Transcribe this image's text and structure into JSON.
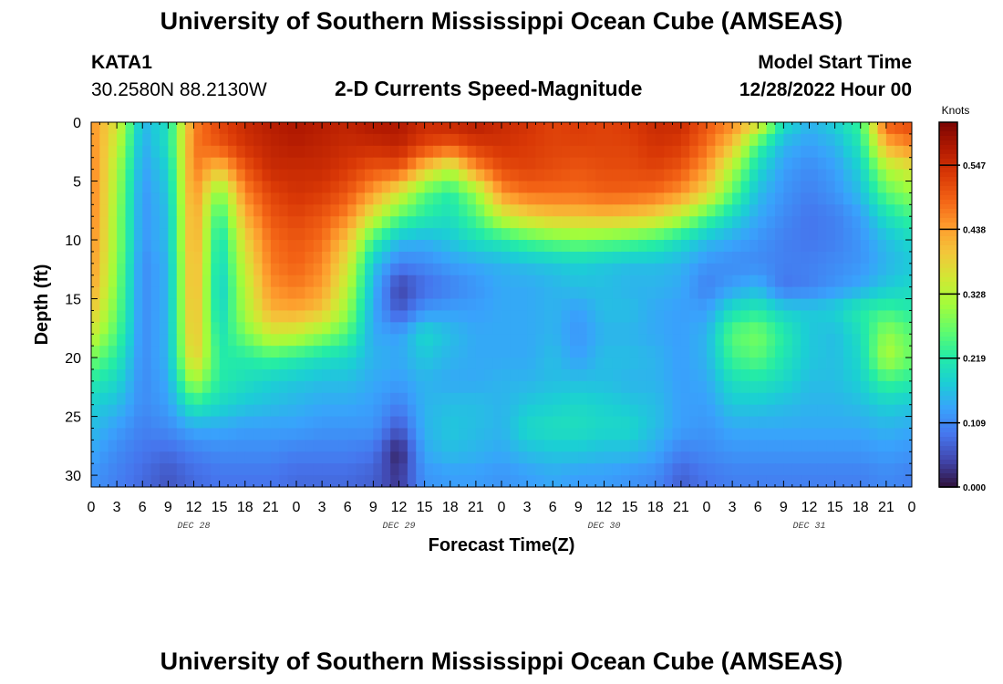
{
  "header": {
    "title": "University of Southern Mississippi Ocean Cube (AMSEAS)",
    "station": "KATA1",
    "coords": "30.2580N  88.2130W",
    "chart_title": "2-D Currents Speed-Magnitude",
    "model_start_label": "Model Start Time",
    "model_start_value": "12/28/2022 Hour 00"
  },
  "footer": {
    "title": "University of Southern Mississippi Ocean Cube (AMSEAS)"
  },
  "chart_data": {
    "type": "heatmap",
    "title": "2-D Currents Speed-Magnitude",
    "xlabel": "Forecast Time(Z)",
    "ylabel": "Depth (ft)",
    "x_tick_labels": [
      "0",
      "3",
      "6",
      "9",
      "12",
      "15",
      "18",
      "21",
      "0",
      "3",
      "6",
      "9",
      "12",
      "15",
      "18",
      "21",
      "0",
      "3",
      "6",
      "9",
      "12",
      "15",
      "18",
      "21",
      "0",
      "3",
      "6",
      "9",
      "12",
      "15",
      "18",
      "21",
      "0"
    ],
    "day_labels": [
      {
        "label": "DEC 28",
        "hour": 12
      },
      {
        "label": "DEC 29",
        "hour": 36
      },
      {
        "label": "DEC 30",
        "hour": 60
      },
      {
        "label": "DEC 31",
        "hour": 84
      }
    ],
    "xlim_hours": [
      0,
      96
    ],
    "ylim_ft": [
      0,
      31
    ],
    "y_ticks": [
      0,
      5,
      10,
      15,
      20,
      25,
      30
    ],
    "y_inverted": true,
    "colorbar": {
      "unit": "Knots",
      "min": 0.0,
      "max": 0.62,
      "tick_values": [
        0.547,
        0.438,
        0.328,
        0.219,
        0.109,
        0.0
      ],
      "tick_labels": [
        "0.547",
        "0.438",
        "0.328",
        "0.219",
        "0.109",
        "0.000"
      ],
      "colormap": [
        "#30123b",
        "#4145ab",
        "#4675ed",
        "#39a2fc",
        "#1bcfd4",
        "#24eca6",
        "#61fc6c",
        "#a4fc3b",
        "#d1e834",
        "#f3c63a",
        "#fe9b2d",
        "#f36315",
        "#d93806",
        "#b11901",
        "#7a0402"
      ]
    },
    "depth_levels_ft": [
      0,
      2,
      4,
      6,
      8,
      10,
      12,
      14,
      16,
      18,
      20,
      22,
      24,
      26,
      28,
      30
    ],
    "time_hours": [
      0,
      3,
      6,
      9,
      12,
      15,
      18,
      21,
      24,
      27,
      30,
      33,
      36,
      39,
      42,
      45,
      48,
      51,
      54,
      57,
      60,
      63,
      66,
      69,
      72,
      75,
      78,
      81,
      84,
      87,
      90,
      93,
      96
    ],
    "speed_knots": [
      [
        0.45,
        0.36,
        0.15,
        0.2,
        0.46,
        0.52,
        0.55,
        0.57,
        0.58,
        0.57,
        0.56,
        0.58,
        0.58,
        0.55,
        0.56,
        0.57,
        0.55,
        0.54,
        0.52,
        0.53,
        0.52,
        0.53,
        0.55,
        0.55,
        0.5,
        0.46,
        0.38,
        0.2,
        0.15,
        0.18,
        0.24,
        0.5,
        0.52
      ],
      [
        0.46,
        0.34,
        0.14,
        0.2,
        0.47,
        0.5,
        0.54,
        0.56,
        0.57,
        0.56,
        0.55,
        0.55,
        0.56,
        0.52,
        0.5,
        0.53,
        0.54,
        0.53,
        0.52,
        0.52,
        0.52,
        0.52,
        0.54,
        0.53,
        0.48,
        0.4,
        0.24,
        0.15,
        0.13,
        0.15,
        0.21,
        0.42,
        0.46
      ],
      [
        0.47,
        0.32,
        0.13,
        0.18,
        0.47,
        0.4,
        0.5,
        0.55,
        0.55,
        0.55,
        0.53,
        0.5,
        0.5,
        0.4,
        0.33,
        0.45,
        0.51,
        0.52,
        0.51,
        0.5,
        0.51,
        0.51,
        0.52,
        0.5,
        0.44,
        0.32,
        0.19,
        0.13,
        0.11,
        0.13,
        0.18,
        0.32,
        0.36
      ],
      [
        0.47,
        0.31,
        0.12,
        0.17,
        0.46,
        0.28,
        0.46,
        0.52,
        0.54,
        0.53,
        0.5,
        0.44,
        0.36,
        0.26,
        0.22,
        0.3,
        0.45,
        0.48,
        0.48,
        0.48,
        0.49,
        0.49,
        0.48,
        0.45,
        0.38,
        0.26,
        0.16,
        0.12,
        0.1,
        0.12,
        0.16,
        0.26,
        0.3
      ],
      [
        0.47,
        0.3,
        0.12,
        0.16,
        0.45,
        0.22,
        0.42,
        0.5,
        0.52,
        0.5,
        0.46,
        0.35,
        0.26,
        0.22,
        0.2,
        0.25,
        0.34,
        0.38,
        0.4,
        0.4,
        0.41,
        0.4,
        0.38,
        0.33,
        0.25,
        0.19,
        0.14,
        0.11,
        0.09,
        0.1,
        0.13,
        0.2,
        0.24
      ],
      [
        0.46,
        0.3,
        0.12,
        0.16,
        0.45,
        0.19,
        0.38,
        0.48,
        0.5,
        0.48,
        0.4,
        0.24,
        0.16,
        0.15,
        0.17,
        0.2,
        0.22,
        0.25,
        0.27,
        0.28,
        0.27,
        0.26,
        0.24,
        0.2,
        0.16,
        0.14,
        0.12,
        0.1,
        0.09,
        0.1,
        0.12,
        0.16,
        0.19
      ],
      [
        0.45,
        0.29,
        0.11,
        0.15,
        0.44,
        0.18,
        0.35,
        0.47,
        0.49,
        0.46,
        0.36,
        0.17,
        0.1,
        0.11,
        0.13,
        0.14,
        0.15,
        0.16,
        0.17,
        0.18,
        0.17,
        0.16,
        0.16,
        0.15,
        0.12,
        0.11,
        0.11,
        0.1,
        0.1,
        0.11,
        0.12,
        0.15,
        0.17
      ],
      [
        0.44,
        0.28,
        0.11,
        0.15,
        0.44,
        0.17,
        0.33,
        0.45,
        0.47,
        0.44,
        0.33,
        0.15,
        0.04,
        0.08,
        0.1,
        0.12,
        0.14,
        0.14,
        0.15,
        0.16,
        0.16,
        0.15,
        0.15,
        0.14,
        0.1,
        0.13,
        0.15,
        0.09,
        0.1,
        0.12,
        0.14,
        0.17,
        0.19
      ],
      [
        0.4,
        0.27,
        0.11,
        0.15,
        0.43,
        0.18,
        0.32,
        0.42,
        0.43,
        0.4,
        0.3,
        0.14,
        0.06,
        0.12,
        0.13,
        0.13,
        0.14,
        0.14,
        0.15,
        0.13,
        0.16,
        0.16,
        0.14,
        0.13,
        0.13,
        0.2,
        0.22,
        0.18,
        0.17,
        0.18,
        0.22,
        0.24,
        0.22
      ],
      [
        0.35,
        0.25,
        0.11,
        0.15,
        0.42,
        0.2,
        0.28,
        0.35,
        0.34,
        0.3,
        0.25,
        0.14,
        0.13,
        0.19,
        0.16,
        0.14,
        0.14,
        0.14,
        0.15,
        0.12,
        0.15,
        0.15,
        0.14,
        0.13,
        0.15,
        0.26,
        0.28,
        0.22,
        0.17,
        0.16,
        0.2,
        0.3,
        0.26
      ],
      [
        0.28,
        0.22,
        0.11,
        0.15,
        0.4,
        0.22,
        0.22,
        0.24,
        0.22,
        0.2,
        0.19,
        0.15,
        0.14,
        0.17,
        0.15,
        0.14,
        0.14,
        0.14,
        0.16,
        0.13,
        0.16,
        0.16,
        0.15,
        0.13,
        0.15,
        0.24,
        0.26,
        0.21,
        0.17,
        0.16,
        0.19,
        0.32,
        0.27
      ],
      [
        0.22,
        0.19,
        0.11,
        0.14,
        0.32,
        0.22,
        0.2,
        0.18,
        0.17,
        0.16,
        0.16,
        0.14,
        0.13,
        0.15,
        0.14,
        0.14,
        0.15,
        0.15,
        0.16,
        0.16,
        0.16,
        0.15,
        0.15,
        0.13,
        0.14,
        0.2,
        0.21,
        0.19,
        0.16,
        0.16,
        0.18,
        0.24,
        0.22
      ],
      [
        0.18,
        0.16,
        0.11,
        0.13,
        0.22,
        0.19,
        0.17,
        0.16,
        0.15,
        0.14,
        0.14,
        0.13,
        0.1,
        0.15,
        0.16,
        0.16,
        0.15,
        0.17,
        0.18,
        0.19,
        0.18,
        0.17,
        0.16,
        0.13,
        0.13,
        0.17,
        0.17,
        0.16,
        0.15,
        0.15,
        0.16,
        0.18,
        0.17
      ],
      [
        0.16,
        0.13,
        0.1,
        0.11,
        0.14,
        0.14,
        0.13,
        0.13,
        0.13,
        0.12,
        0.12,
        0.12,
        0.06,
        0.15,
        0.17,
        0.16,
        0.15,
        0.19,
        0.2,
        0.2,
        0.19,
        0.19,
        0.16,
        0.13,
        0.12,
        0.14,
        0.14,
        0.14,
        0.14,
        0.14,
        0.14,
        0.15,
        0.14
      ],
      [
        0.14,
        0.11,
        0.09,
        0.08,
        0.1,
        0.11,
        0.11,
        0.11,
        0.1,
        0.1,
        0.1,
        0.09,
        0.01,
        0.14,
        0.16,
        0.15,
        0.14,
        0.16,
        0.17,
        0.17,
        0.16,
        0.16,
        0.14,
        0.1,
        0.11,
        0.12,
        0.12,
        0.12,
        0.12,
        0.12,
        0.12,
        0.13,
        0.12
      ],
      [
        0.12,
        0.1,
        0.08,
        0.06,
        0.08,
        0.09,
        0.09,
        0.09,
        0.08,
        0.08,
        0.08,
        0.07,
        0.03,
        0.12,
        0.13,
        0.13,
        0.12,
        0.13,
        0.14,
        0.13,
        0.13,
        0.12,
        0.11,
        0.07,
        0.09,
        0.1,
        0.1,
        0.1,
        0.1,
        0.1,
        0.1,
        0.11,
        0.1
      ]
    ]
  }
}
